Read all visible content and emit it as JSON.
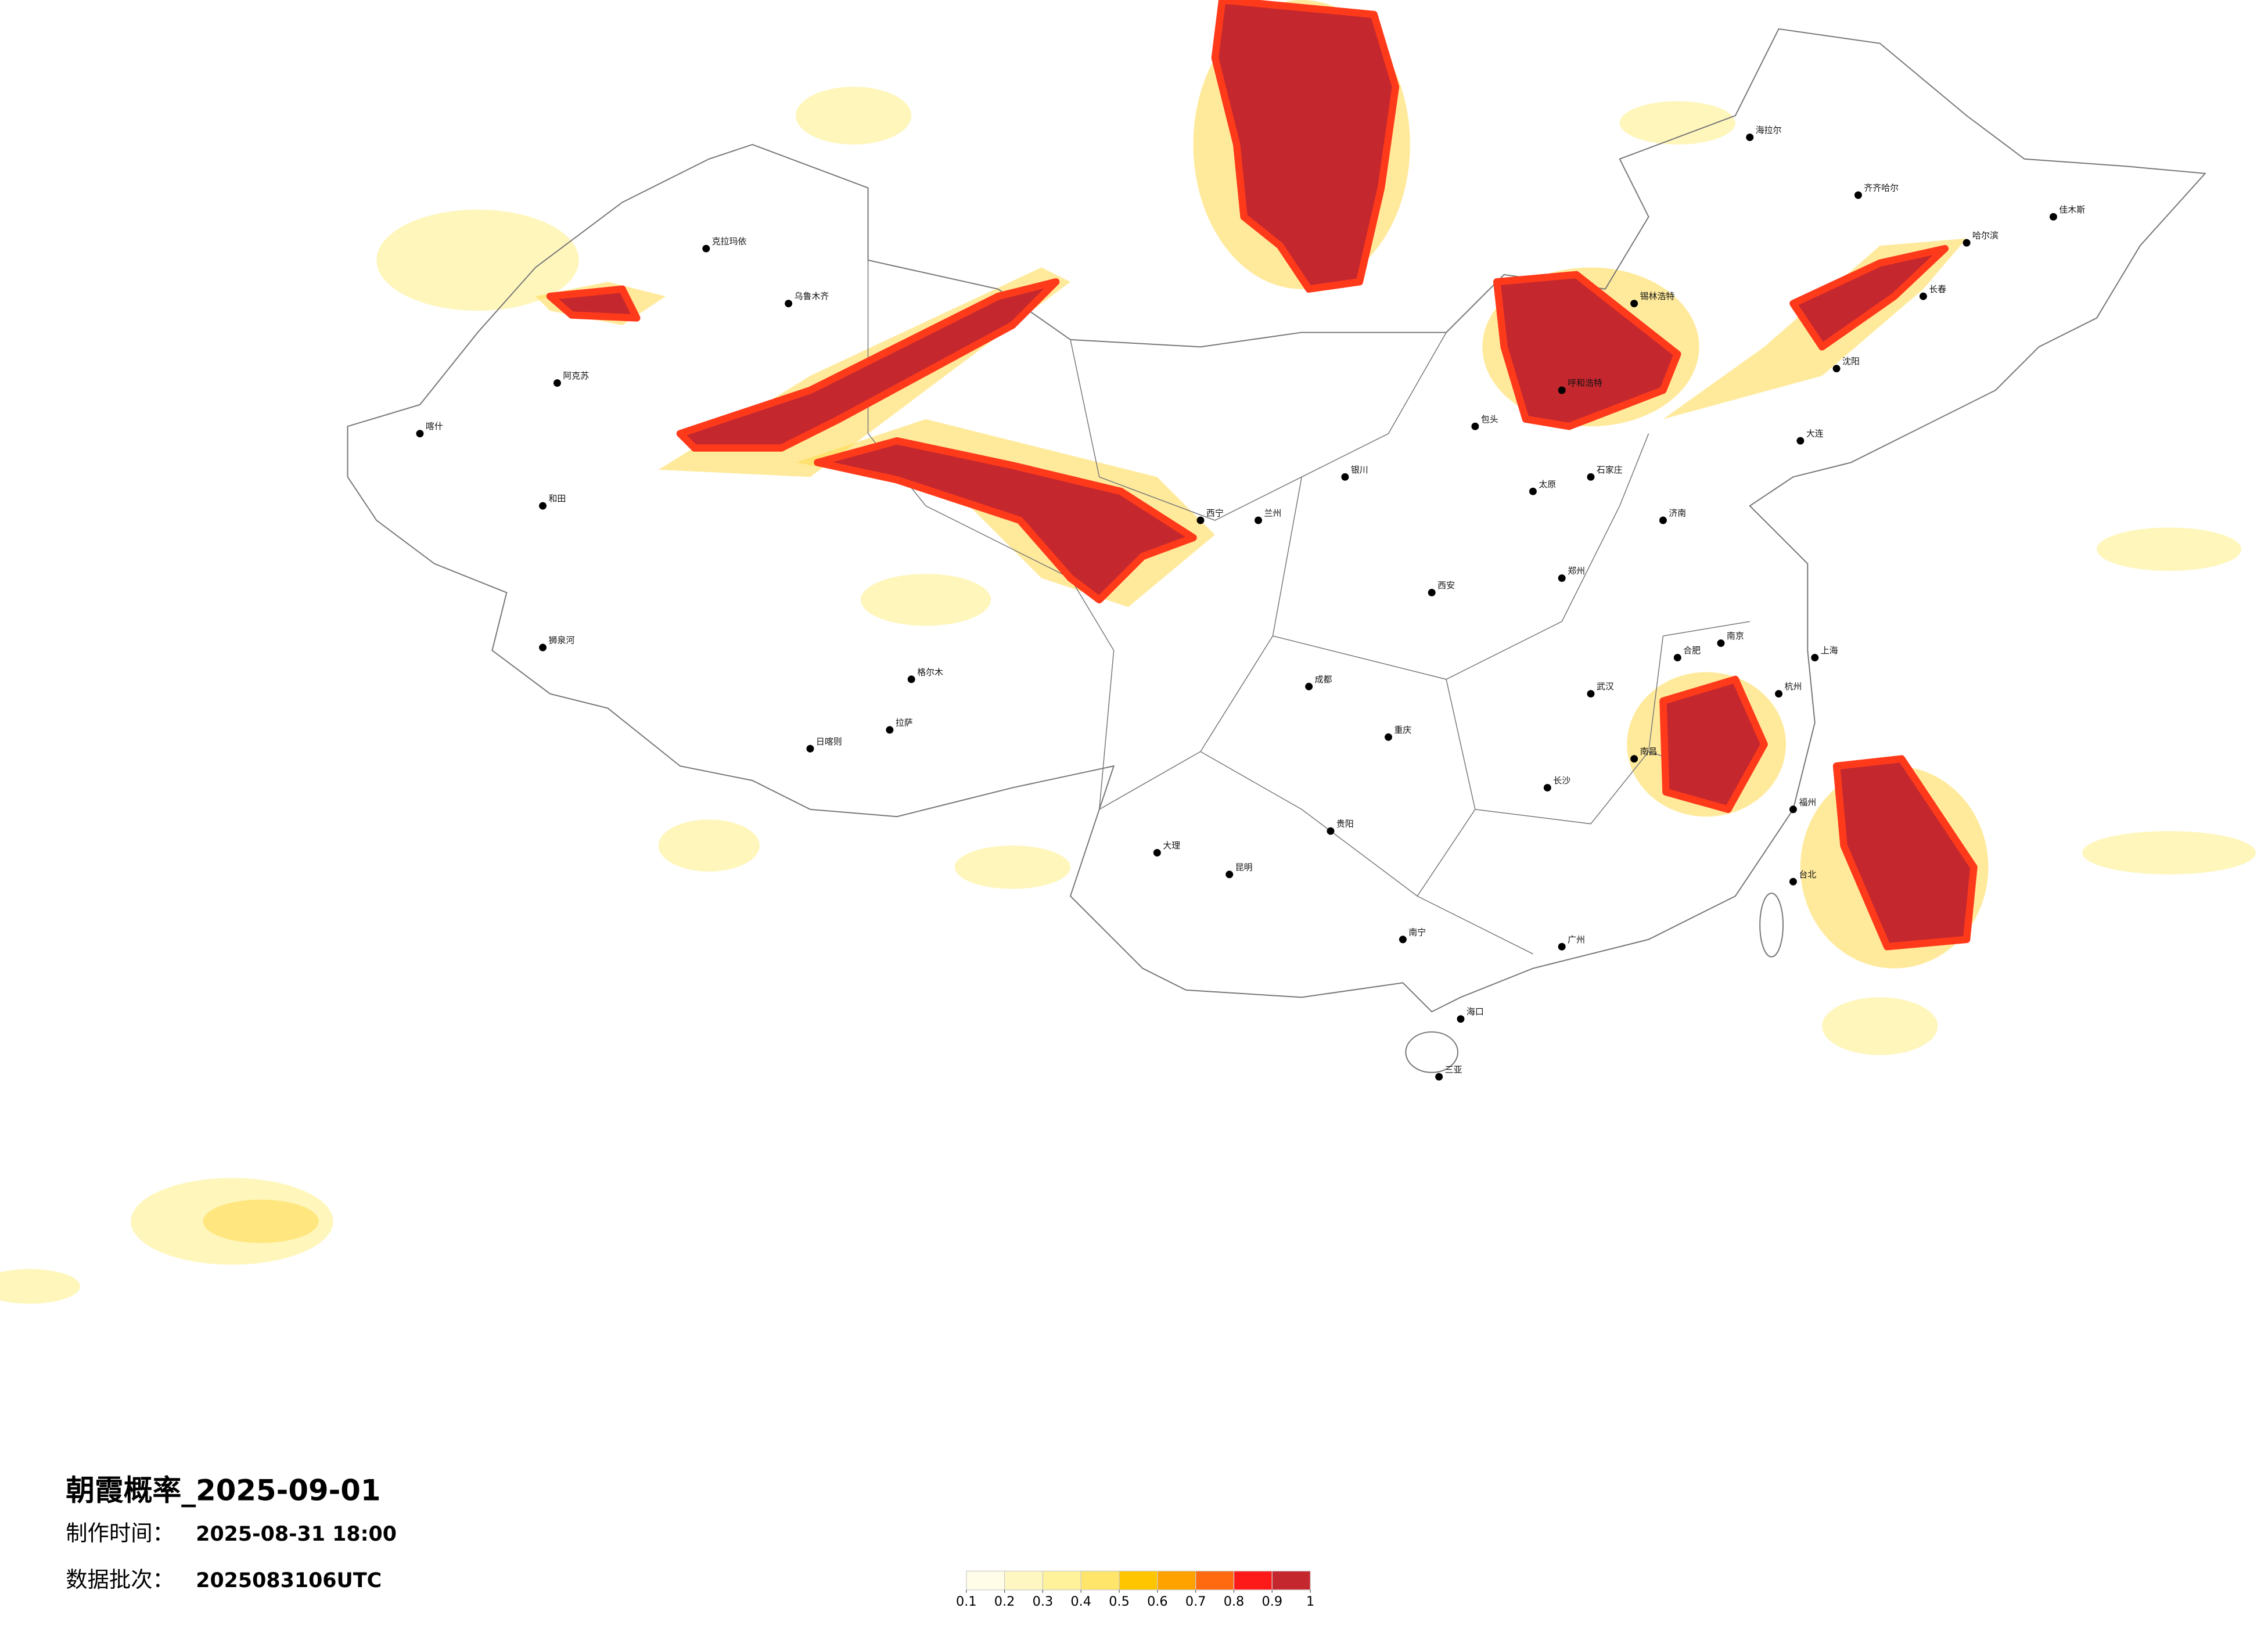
{
  "map": {
    "title": "朝霞概率_2025-09-01",
    "made_label": "制作时间：",
    "made_time": "2025-08-31 18:00",
    "batch_label": "数据批次：",
    "batch": "2025083106UTC",
    "cities": [
      "哈尔滨",
      "长春",
      "沈阳",
      "大连",
      "呼和浩特",
      "石家庄",
      "太原",
      "济南",
      "郑州",
      "西安",
      "兰州",
      "西宁",
      "银川",
      "乌鲁木齐",
      "克拉玛依",
      "阿克苏",
      "和田",
      "喀什",
      "狮泉河",
      "日喀则",
      "拉萨",
      "成都",
      "重庆",
      "贵阳",
      "昆明",
      "南宁",
      "广州",
      "长沙",
      "武汉",
      "南昌",
      "合肥",
      "南京",
      "杭州",
      "上海",
      "福州",
      "台北",
      "海口",
      "三亚",
      "齐齐哈尔",
      "海拉尔",
      "佳木斯",
      "包头",
      "锡林浩特",
      "格尔木",
      "大理"
    ],
    "legend": {
      "ticks": [
        0.1,
        0.2,
        0.3,
        0.4,
        0.5,
        0.6,
        0.7,
        0.8,
        0.9,
        1
      ],
      "colors": [
        "#fffce8",
        "#fff7c2",
        "#fff29a",
        "#ffe56a",
        "#ffc600",
        "#ffa200",
        "#ff6a10",
        "#ff1a1a",
        "#c4282e"
      ]
    }
  }
}
